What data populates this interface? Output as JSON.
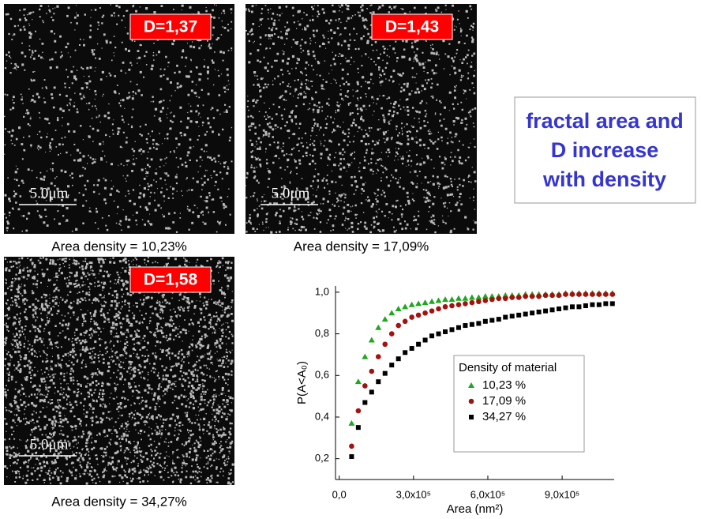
{
  "panels": [
    {
      "label": "D=1,37",
      "caption": "Area density = 10,23%",
      "scale_bar": "5.0μm"
    },
    {
      "label": "D=1,43",
      "caption": "Area density = 17,09%",
      "scale_bar": "5.0μm"
    },
    {
      "label": "D=1,58",
      "caption": "Area density = 34,27%",
      "scale_bar": "5.0μm"
    }
  ],
  "text_box": {
    "lines": [
      "fractal area and",
      "D increase",
      "with density"
    ]
  },
  "chart_data": {
    "type": "scatter",
    "x_label": "Area (nm²)",
    "y_label": "P(A<A₀)",
    "legend_title": "Density of material",
    "x": [
      50000,
      77000,
      104000,
      131000,
      158000,
      185000,
      212000,
      239000,
      266000,
      293000,
      320000,
      347000,
      374000,
      401000,
      428000,
      455000,
      482000,
      509000,
      536000,
      563000,
      590000,
      617000,
      644000,
      671000,
      698000,
      725000,
      752000,
      779000,
      806000,
      833000,
      860000,
      887000,
      914000,
      941000,
      968000,
      995000,
      1022000,
      1049000,
      1076000,
      1103000
    ],
    "series": [
      {
        "name": "10,23 %",
        "color": "#1fa81f",
        "marker": "triangle",
        "values": [
          0.37,
          0.57,
          0.69,
          0.77,
          0.83,
          0.87,
          0.9,
          0.92,
          0.93,
          0.94,
          0.945,
          0.95,
          0.955,
          0.96,
          0.965,
          0.965,
          0.97,
          0.97,
          0.975,
          0.975,
          0.98,
          0.98,
          0.98,
          0.985,
          0.985,
          0.985,
          0.99,
          0.99,
          0.99,
          0.99,
          0.99,
          0.99,
          0.995,
          0.995,
          0.995,
          0.995,
          0.995,
          0.995,
          0.995,
          0.995
        ]
      },
      {
        "name": "17,09 %",
        "color": "#a3120f",
        "marker": "circle",
        "values": [
          0.26,
          0.43,
          0.55,
          0.62,
          0.69,
          0.75,
          0.8,
          0.84,
          0.86,
          0.88,
          0.89,
          0.9,
          0.91,
          0.92,
          0.93,
          0.935,
          0.94,
          0.945,
          0.95,
          0.955,
          0.96,
          0.965,
          0.97,
          0.97,
          0.975,
          0.975,
          0.98,
          0.98,
          0.98,
          0.985,
          0.985,
          0.985,
          0.99,
          0.99,
          0.99,
          0.99,
          0.99,
          0.99,
          0.99,
          0.99
        ]
      },
      {
        "name": "34,27 %",
        "color": "#000000",
        "marker": "square",
        "values": [
          0.21,
          0.35,
          0.47,
          0.52,
          0.57,
          0.61,
          0.65,
          0.68,
          0.71,
          0.73,
          0.75,
          0.77,
          0.79,
          0.8,
          0.81,
          0.82,
          0.83,
          0.84,
          0.845,
          0.85,
          0.86,
          0.865,
          0.87,
          0.88,
          0.885,
          0.89,
          0.895,
          0.9,
          0.905,
          0.91,
          0.915,
          0.92,
          0.925,
          0.93,
          0.93,
          0.935,
          0.94,
          0.94,
          0.945,
          0.945
        ]
      }
    ],
    "xlim": [
      -15000,
      1110000
    ],
    "ylim": [
      0.1,
      1.03
    ],
    "xticks": [
      {
        "value": 0,
        "label": "0,0"
      },
      {
        "value": 300000,
        "label": "3,0x10⁵"
      },
      {
        "value": 600000,
        "label": "6,0x10⁵"
      },
      {
        "value": 900000,
        "label": "9,0x10⁵"
      }
    ],
    "yticks": [
      {
        "value": 0.2,
        "label": "0,2"
      },
      {
        "value": 0.4,
        "label": "0,4"
      },
      {
        "value": 0.6,
        "label": "0,6"
      },
      {
        "value": 0.8,
        "label": "0,8"
      },
      {
        "value": 1.0,
        "label": "1,0"
      }
    ],
    "grid": false
  }
}
